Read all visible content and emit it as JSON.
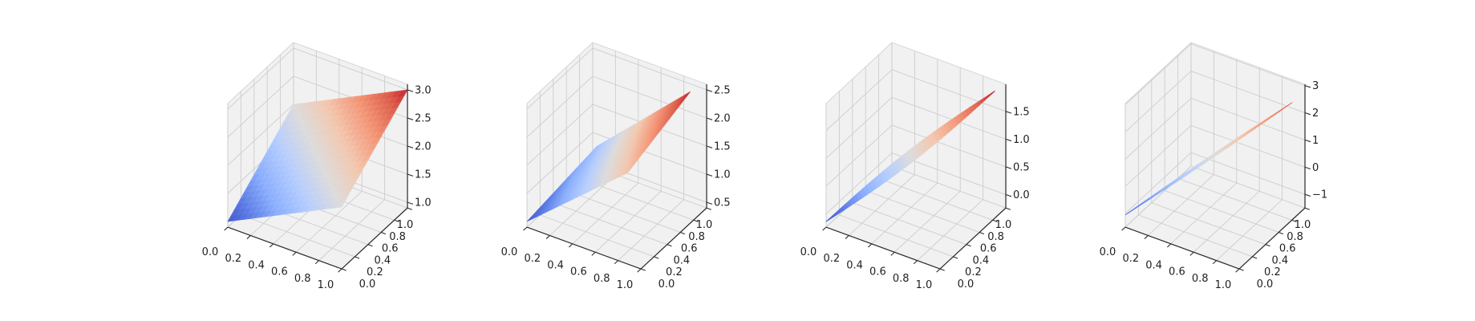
{
  "figure": {
    "background": "#ffffff",
    "subplot_count": 4
  },
  "colors": {
    "pane": "#f1f1f2",
    "pane_edge": "#d6d6d6",
    "grid": "#cdcdcd",
    "spine": "#2e2e2e",
    "tick_label": "#1f1f1f",
    "coolwarm_stops": [
      [
        0.0,
        "#3A4CC0"
      ],
      [
        0.125,
        "#5977E3"
      ],
      [
        0.25,
        "#8DB0FE"
      ],
      [
        0.375,
        "#B6CEFE"
      ],
      [
        0.5,
        "#DDDCDC"
      ],
      [
        0.625,
        "#F3C8B0"
      ],
      [
        0.75,
        "#F4987A"
      ],
      [
        0.875,
        "#DE604D"
      ],
      [
        1.0,
        "#B40426"
      ]
    ]
  },
  "chart_data": [
    {
      "type": "surface",
      "colormap": "coolwarm",
      "grid": true,
      "xlim": [
        0,
        1
      ],
      "ylim": [
        0,
        1
      ],
      "zlim": [
        0.9,
        3.1
      ],
      "x_tick_labels": [
        "0.0",
        "0.2",
        "0.4",
        "0.6",
        "0.8",
        "1.0"
      ],
      "y_tick_labels": [
        "0.0",
        "0.2",
        "0.4",
        "0.6",
        "0.8",
        "1.0"
      ],
      "z_tick_labels": [
        "1.0",
        "1.5",
        "2.0",
        "2.5",
        "3.0"
      ],
      "z_tick_values": [
        1.0,
        1.5,
        2.0,
        2.5,
        3.0
      ],
      "surface": {
        "kind": "patch",
        "corners_xyz": [
          [
            0,
            0,
            1.0
          ],
          [
            1,
            0,
            2.0
          ],
          [
            1,
            1,
            3.0
          ],
          [
            0,
            1,
            2.0
          ]
        ]
      }
    },
    {
      "type": "surface",
      "colormap": "coolwarm",
      "grid": true,
      "xlim": [
        0,
        1
      ],
      "ylim": [
        0,
        1
      ],
      "zlim": [
        0.4,
        2.6
      ],
      "x_tick_labels": [
        "0.0",
        "0.2",
        "0.4",
        "0.6",
        "0.8",
        "1.0"
      ],
      "y_tick_labels": [
        "0.0",
        "0.2",
        "0.4",
        "0.6",
        "0.8",
        "1.0"
      ],
      "z_tick_labels": [
        "0.5",
        "1.0",
        "1.5",
        "2.0",
        "2.5"
      ],
      "z_tick_values": [
        0.5,
        1.0,
        1.5,
        2.0,
        2.5
      ],
      "surface": {
        "kind": "patch",
        "corners_xyz": [
          [
            0,
            0,
            0.5
          ],
          [
            0.8,
            0.15,
            1.8
          ],
          [
            0.91,
            0.91,
            2.5
          ],
          [
            0.15,
            0.8,
            1.08
          ]
        ]
      }
    },
    {
      "type": "surface",
      "colormap": "coolwarm",
      "grid": true,
      "xlim": [
        0,
        1
      ],
      "ylim": [
        0,
        1
      ],
      "zlim": [
        -0.24,
        1.99
      ],
      "x_tick_labels": [
        "0.0",
        "0.2",
        "0.4",
        "0.6",
        "0.8",
        "1.0"
      ],
      "y_tick_labels": [
        "0.0",
        "0.2",
        "0.4",
        "0.6",
        "0.8",
        "1.0"
      ],
      "z_tick_labels": [
        "0.0",
        "0.5",
        "1.0",
        "1.5"
      ],
      "z_tick_values": [
        0.0,
        0.5,
        1.0,
        1.5
      ],
      "surface": {
        "kind": "ribbon",
        "start_xyz": [
          0,
          0,
          -0.14
        ],
        "end_xyz": [
          0.94,
          0.94,
          1.89
        ],
        "halfwidth": 0.05,
        "width_profile": "sin"
      }
    },
    {
      "type": "surface",
      "colormap": "coolwarm",
      "grid": true,
      "xlim": [
        0,
        1
      ],
      "ylim": [
        0,
        1
      ],
      "zlim": [
        -1.5,
        3.05
      ],
      "x_tick_labels": [
        "0.0",
        "0.2",
        "0.4",
        "0.6",
        "0.8",
        "1.0"
      ],
      "y_tick_labels": [
        "0.0",
        "0.2",
        "0.4",
        "0.6",
        "0.8",
        "1.0"
      ],
      "z_tick_labels": [
        "−1",
        "0",
        "1",
        "2",
        "3"
      ],
      "z_tick_values": [
        -1,
        0,
        1,
        2,
        3
      ],
      "surface": {
        "kind": "ribbon",
        "start_xyz": [
          0,
          0,
          -1.05
        ],
        "end_xyz": [
          0.93,
          0.93,
          2.43
        ],
        "halfwidth": 0.012,
        "width_profile": "sin"
      }
    }
  ]
}
